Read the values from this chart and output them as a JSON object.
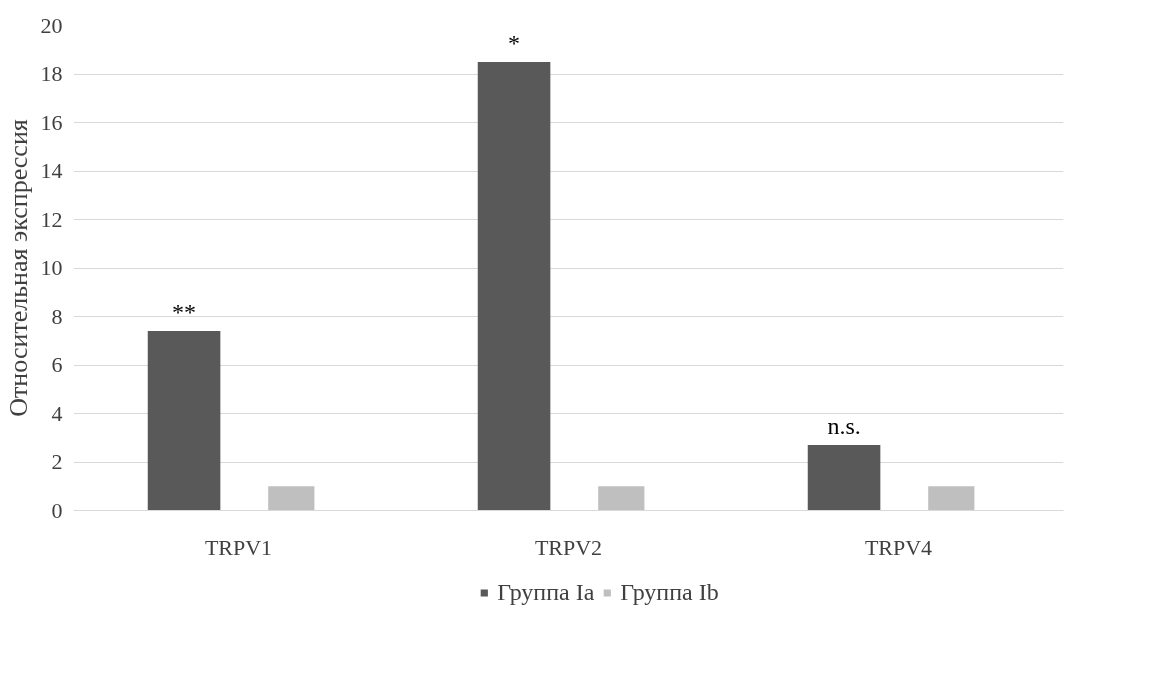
{
  "chart_data": {
    "type": "bar",
    "ylabel": "Относительная экспрессия",
    "categories": [
      "TRPV1",
      "TRPV2",
      "TRPV4"
    ],
    "series": [
      {
        "name": "Группа Ia",
        "color": "#595959",
        "values": [
          7.4,
          18.5,
          2.7
        ]
      },
      {
        "name": "Группа Ib",
        "color": "#bfbfbf",
        "values": [
          1,
          1,
          1
        ]
      }
    ],
    "ylim": [
      0,
      20
    ],
    "yticks": [
      0,
      2,
      4,
      6,
      8,
      10,
      12,
      14,
      16,
      18,
      20
    ],
    "grid": "y",
    "legend": "bottom",
    "annotations": [
      "**",
      "*",
      "n.s."
    ]
  }
}
